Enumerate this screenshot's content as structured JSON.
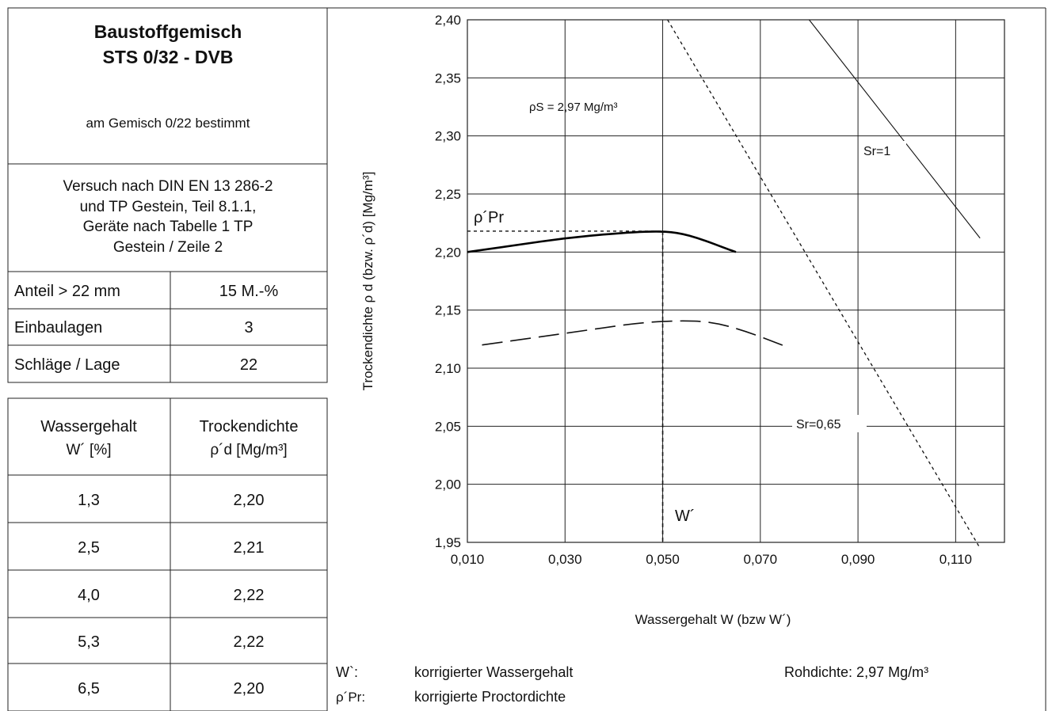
{
  "header": {
    "title_line1": "Baustoffgemisch",
    "title_line2": "STS 0/32 - DVB",
    "subtitle": "am Gemisch 0/22 bestimmt",
    "method_lines": [
      "Versuch nach DIN EN 13 286-2",
      "und TP Gestein, Teil 8.1.1,",
      "Geräte nach Tabelle 1 TP",
      "Gestein / Zeile 2"
    ]
  },
  "params": [
    {
      "label": "Anteil > 22 mm",
      "value": "15 M.-%"
    },
    {
      "label": "Einbaulagen",
      "value": "3"
    },
    {
      "label": "Schläge / Lage",
      "value": "22"
    }
  ],
  "table": {
    "col1_line1": "Wassergehalt",
    "col1_line2": "W´ [%]",
    "col2_line1": "Trockendichte",
    "col2_line2": "ρ´d [Mg/m³]",
    "rows": [
      {
        "w": "1,3",
        "rho": "2,20"
      },
      {
        "w": "2,5",
        "rho": "2,21"
      },
      {
        "w": "4,0",
        "rho": "2,22"
      },
      {
        "w": "5,3",
        "rho": "2,22"
      },
      {
        "w": "6,5",
        "rho": "2,20"
      }
    ]
  },
  "legend": {
    "w_symbol": "W`:",
    "w_text": "korrigierter Wassergehalt",
    "rho_symbol": "ρ´Pr:",
    "rho_text": "korrigierte Proctordichte",
    "rohdichte": "Rohdichte: 2,97 Mg/m³"
  },
  "chart_data": {
    "type": "line",
    "xlabel": "Wassergehalt W (bzw W´)",
    "ylabel": "Trockendichte ρ d (bzw. ρ´d) [Mg/m³]",
    "xlim": [
      0.01,
      0.12
    ],
    "ylim": [
      1.95,
      2.4
    ],
    "xticks": [
      0.01,
      0.03,
      0.05,
      0.07,
      0.09,
      0.11
    ],
    "xtick_labels": [
      "0,010",
      "0,030",
      "0,050",
      "0,070",
      "0,090",
      "0,110"
    ],
    "yticks": [
      1.95,
      2.0,
      2.05,
      2.1,
      2.15,
      2.2,
      2.25,
      2.3,
      2.35,
      2.4
    ],
    "ytick_labels": [
      "1,95",
      "2,00",
      "2,05",
      "2,10",
      "2,15",
      "2,20",
      "2,25",
      "2,30",
      "2,35",
      "2,40"
    ],
    "grid": true,
    "series": [
      {
        "style": "solid-thick",
        "x": [
          0.01,
          0.02,
          0.03,
          0.04,
          0.048,
          0.053,
          0.058,
          0.063,
          0.065
        ],
        "y": [
          2.2,
          2.206,
          2.212,
          2.216,
          2.218,
          2.217,
          2.211,
          2.203,
          2.2
        ]
      },
      {
        "style": "long-dash",
        "x": [
          0.013,
          0.025,
          0.035,
          0.045,
          0.053,
          0.06,
          0.067,
          0.075
        ],
        "y": [
          2.12,
          2.127,
          2.133,
          2.139,
          2.141,
          2.14,
          2.132,
          2.119
        ]
      },
      {
        "style": "short-dash",
        "x": [
          0.051,
          0.115
        ],
        "y": [
          2.4,
          1.945
        ]
      },
      {
        "style": "solid-thin",
        "x": [
          0.08,
          0.115
        ],
        "y": [
          2.4,
          2.212
        ]
      }
    ],
    "proctor": {
      "x": 0.05,
      "y": 2.218
    },
    "annotations": {
      "rho_s": "ρS = 2,97 Mg/m³",
      "sr1": "Sr=1",
      "sr065": "Sr=0,65",
      "rho_pr": "ρ´Pr",
      "w_prime": "W´"
    }
  }
}
